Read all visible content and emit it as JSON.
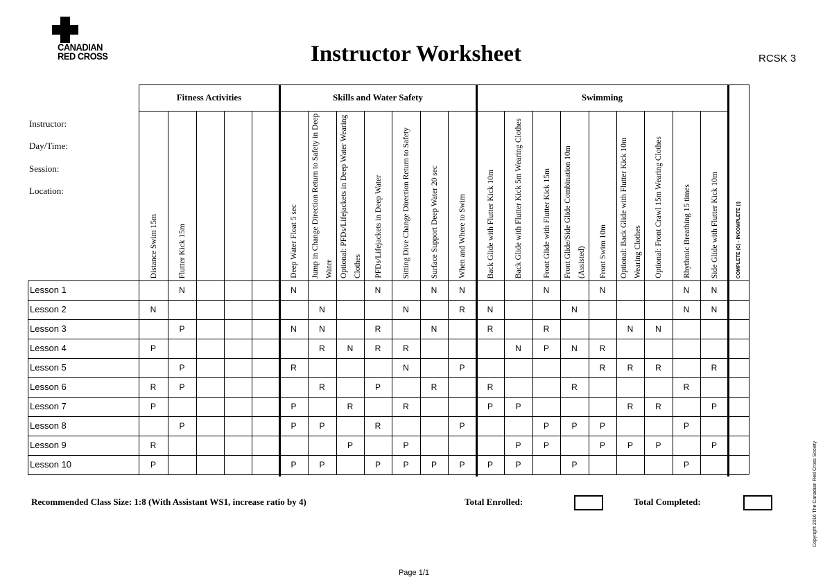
{
  "logo": {
    "line1": "CANADIAN",
    "line2": "RED CROSS"
  },
  "title": "Instructor Worksheet",
  "code": "RCSK 3",
  "info_labels": [
    "Instructor:",
    "Day/Time:",
    "Session:",
    "Location:"
  ],
  "groups": [
    "Fitness Activities",
    "Skills and Water Safety",
    "Swimming"
  ],
  "columns": [
    "Distance Swim 15m",
    "Flutter Kick 15m",
    "",
    "",
    "",
    "Deep Water Float 5 sec",
    "Jump in Change Direction Return to Safety in Deep Water",
    "Optional: PFDs/Lifejackets in Deep Water Wearing Clothes",
    "PFDs/Lifejackets in Deep Water",
    "Sitting Dive Change Direction Return to Safety",
    "Surface Support Deep Water 20 sec",
    "When and Where to Swim",
    "Back Glide with Flutter Kick 10m",
    "Back Glide with Flutter Kick 5m Wearing Clothes",
    "Front Glide with Flutter Kick 15m",
    "Front Glide/Side Glide Combination 10m (Assisted)",
    "Front Swim 10m",
    "Optional: Back Glide with Flutter Kick 10m Wearing Clothes",
    "Optional: Front Crawl 15m Wearing Clothes",
    "Rhythmic Breathing 15 times",
    "Side Glide with Flutter Kick 10m",
    "COMPLETE (C) - INCOMPLETE (I)"
  ],
  "rows": [
    {
      "label": "Lesson 1",
      "cells": [
        "",
        "N",
        "",
        "",
        "",
        "N",
        "",
        "",
        "N",
        "",
        "N",
        "N",
        "",
        "",
        "N",
        "",
        "N",
        "",
        "",
        "N",
        "N",
        ""
      ]
    },
    {
      "label": "Lesson 2",
      "cells": [
        "N",
        "",
        "",
        "",
        "",
        "",
        "N",
        "",
        "",
        "N",
        "",
        "R",
        "N",
        "",
        "",
        "N",
        "",
        "",
        "",
        "N",
        "N",
        ""
      ]
    },
    {
      "label": "Lesson 3",
      "cells": [
        "",
        "P",
        "",
        "",
        "",
        "N",
        "N",
        "",
        "R",
        "",
        "N",
        "",
        "R",
        "",
        "R",
        "",
        "",
        "N",
        "N",
        "",
        "",
        ""
      ]
    },
    {
      "label": "Lesson 4",
      "cells": [
        "P",
        "",
        "",
        "",
        "",
        "",
        "R",
        "N",
        "R",
        "R",
        "",
        "",
        "",
        "N",
        "P",
        "N",
        "R",
        "",
        "",
        "",
        "",
        ""
      ]
    },
    {
      "label": "Lesson 5",
      "cells": [
        "",
        "P",
        "",
        "",
        "",
        "R",
        "",
        "",
        "",
        "N",
        "",
        "P",
        "",
        "",
        "",
        "",
        "R",
        "R",
        "R",
        "",
        "R",
        ""
      ]
    },
    {
      "label": "Lesson 6",
      "cells": [
        "R",
        "P",
        "",
        "",
        "",
        "",
        "R",
        "",
        "P",
        "",
        "R",
        "",
        "R",
        "",
        "",
        "R",
        "",
        "",
        "",
        "R",
        "",
        ""
      ]
    },
    {
      "label": "Lesson 7",
      "cells": [
        "P",
        "",
        "",
        "",
        "",
        "P",
        "",
        "R",
        "",
        "R",
        "",
        "",
        "P",
        "P",
        "",
        "",
        "",
        "R",
        "R",
        "",
        "P",
        ""
      ]
    },
    {
      "label": "Lesson 8",
      "cells": [
        "",
        "P",
        "",
        "",
        "",
        "P",
        "P",
        "",
        "R",
        "",
        "",
        "P",
        "",
        "",
        "P",
        "P",
        "P",
        "",
        "",
        "P",
        "",
        ""
      ]
    },
    {
      "label": "Lesson 9",
      "cells": [
        "R",
        "",
        "",
        "",
        "",
        "",
        "",
        "P",
        "",
        "P",
        "",
        "",
        "",
        "P",
        "P",
        "",
        "P",
        "P",
        "P",
        "",
        "P",
        ""
      ]
    },
    {
      "label": "Lesson 10",
      "cells": [
        "P",
        "",
        "",
        "",
        "",
        "P",
        "P",
        "",
        "P",
        "P",
        "P",
        "P",
        "P",
        "P",
        "",
        "P",
        "",
        "",
        "",
        "P",
        "",
        ""
      ]
    }
  ],
  "footer": {
    "class_size": "Recommended Class Size: 1:8 (With Assistant WS1, increase ratio by 4)",
    "total_enrolled": "Total Enrolled:",
    "total_completed": "Total Completed:",
    "page": "Page 1/1"
  },
  "copyright": "Copyright 2016 The Canadian Red Cross Society"
}
